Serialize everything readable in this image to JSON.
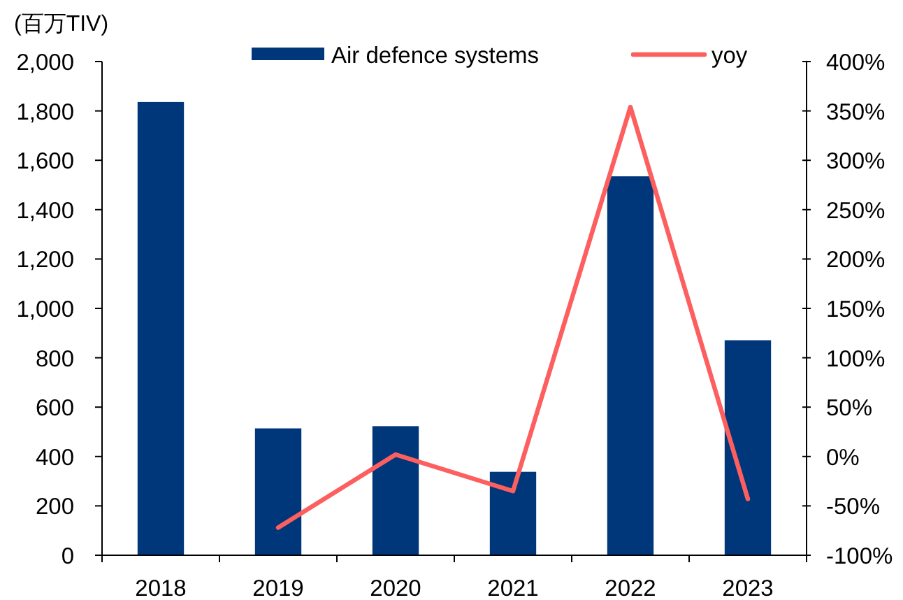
{
  "chart_data": {
    "type": "bar",
    "ylabel": "(百万TIV)",
    "categories": [
      "2018",
      "2019",
      "2020",
      "2021",
      "2022",
      "2023"
    ],
    "series": [
      {
        "name": "Air defence systems",
        "color": "#00377a",
        "values": [
          1836,
          514,
          523,
          338,
          1535,
          871
        ]
      },
      {
        "name": "yoy",
        "type": "line",
        "axis": "y2",
        "color": "#fd5f5f",
        "values": [
          null,
          -72,
          2,
          -35,
          354,
          -43
        ]
      }
    ],
    "ylim": [
      0,
      2000
    ],
    "yticks": [
      0,
      200,
      400,
      600,
      800,
      {
        "value": 1000,
        "label": "1,000"
      },
      {
        "value": 1200,
        "label": "1,200"
      },
      {
        "value": 1400,
        "label": "1,400"
      },
      {
        "value": 1600,
        "label": "1,600"
      },
      {
        "value": 1800,
        "label": "1,800"
      },
      {
        "value": 2000,
        "label": "2,000"
      }
    ],
    "y2lim": [
      -100,
      400
    ],
    "y2ticks": [
      {
        "value": -100,
        "label": "-100%"
      },
      {
        "value": -50,
        "label": "-50%"
      },
      {
        "value": 0,
        "label": "0%"
      },
      {
        "value": 50,
        "label": "50%"
      },
      {
        "value": 100,
        "label": "100%"
      },
      {
        "value": 150,
        "label": "150%"
      },
      {
        "value": 200,
        "label": "200%"
      },
      {
        "value": 250,
        "label": "250%"
      },
      {
        "value": 300,
        "label": "300%"
      },
      {
        "value": 350,
        "label": "350%"
      },
      {
        "value": 400,
        "label": "400%"
      }
    ],
    "legend": "top"
  }
}
